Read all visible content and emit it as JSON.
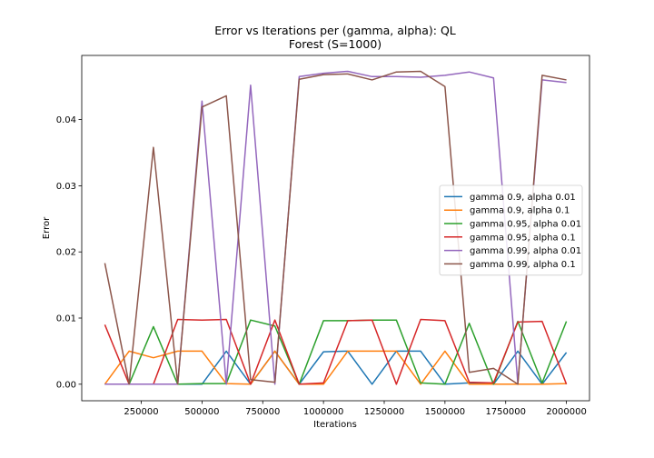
{
  "chart_data": {
    "type": "line",
    "title": "Error vs Iterations per (gamma, alpha): QL",
    "subtitle": "Forest (S=1000)",
    "xlabel": "Iterations",
    "ylabel": "Error",
    "xlim": [
      5000,
      2095000
    ],
    "ylim": [
      -0.0025,
      0.0497
    ],
    "x_ticks": [
      250000,
      500000,
      750000,
      1000000,
      1250000,
      1500000,
      1750000,
      2000000
    ],
    "x_tick_labels": [
      "250000",
      "500000",
      "750000",
      "1000000",
      "1250000",
      "1500000",
      "1750000",
      "2000000"
    ],
    "y_ticks": [
      0.0,
      0.01,
      0.02,
      0.03,
      0.04
    ],
    "y_tick_labels": [
      "0.00",
      "0.01",
      "0.02",
      "0.03",
      "0.04"
    ],
    "grid": false,
    "legend_position": "center-right",
    "x": [
      100000,
      200000,
      300000,
      400000,
      500000,
      600000,
      700000,
      800000,
      900000,
      1000000,
      1100000,
      1200000,
      1300000,
      1400000,
      1500000,
      1600000,
      1700000,
      1800000,
      1900000,
      2000000
    ],
    "series": [
      {
        "name": "gamma 0.9, alpha 0.01",
        "color": "#1f77b4",
        "values": [
          0.0,
          0.0,
          0.0,
          0.0,
          0.0,
          0.005,
          0.0,
          0.005,
          0.0,
          0.0049,
          0.005,
          0.0,
          0.005,
          0.005,
          0.0,
          0.0002,
          0.0,
          0.005,
          0.0,
          0.0048
        ]
      },
      {
        "name": "gamma 0.9, alpha 0.1",
        "color": "#ff7f0e",
        "values": [
          0.0,
          0.005,
          0.004,
          0.005,
          0.005,
          0.0001,
          0.0,
          0.005,
          0.0,
          0.0,
          0.005,
          0.005,
          0.005,
          0.0,
          0.005,
          0.0,
          0.0,
          0.0,
          0.0,
          0.0001
        ]
      },
      {
        "name": "gamma 0.95, alpha 0.01",
        "color": "#2ca02c",
        "values": [
          0.0,
          0.0,
          0.0087,
          0.0,
          0.0001,
          0.0001,
          0.0097,
          0.0088,
          0.0,
          0.0096,
          0.0096,
          0.0097,
          0.0097,
          0.0002,
          0.0,
          0.0092,
          0.0,
          0.0095,
          0.0002,
          0.0095
        ]
      },
      {
        "name": "gamma 0.95, alpha 0.1",
        "color": "#d62728",
        "values": [
          0.009,
          0.0,
          0.0,
          0.0098,
          0.0097,
          0.0098,
          0.0,
          0.0097,
          0.0,
          0.0002,
          0.0096,
          0.0097,
          0.0,
          0.0098,
          0.0096,
          0.0003,
          0.0002,
          0.0094,
          0.0095,
          0.0
        ]
      },
      {
        "name": "gamma 0.99, alpha 0.01",
        "color": "#9467bd",
        "values": [
          0.0,
          0.0,
          0.0,
          0.0,
          0.0428,
          0.0,
          0.0452,
          0.0,
          0.0465,
          0.047,
          0.0473,
          0.0465,
          0.0465,
          0.0464,
          0.0467,
          0.0472,
          0.0463,
          0.0001,
          0.046,
          0.0456
        ]
      },
      {
        "name": "gamma 0.99, alpha 0.1",
        "color": "#8c564b",
        "values": [
          0.0183,
          0.0,
          0.0358,
          0.0,
          0.0419,
          0.0436,
          0.0007,
          0.0003,
          0.0461,
          0.0468,
          0.0469,
          0.046,
          0.0472,
          0.0473,
          0.045,
          0.0018,
          0.0024,
          0.0,
          0.0467,
          0.046
        ]
      }
    ]
  }
}
